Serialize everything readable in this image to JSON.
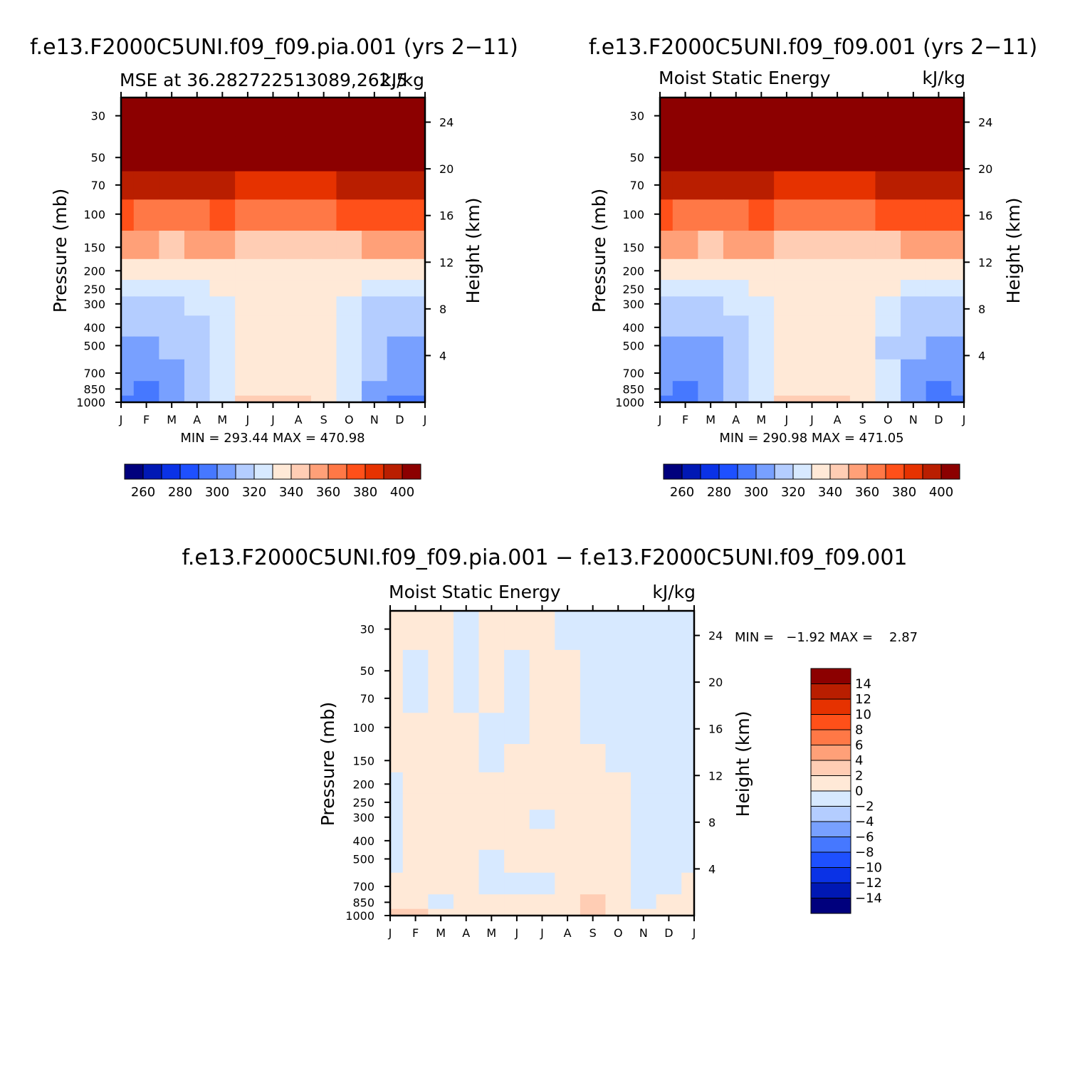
{
  "figure": {
    "panels": [
      {
        "main_title": "f.e13.F2000C5UNI.f09_f09.pia.001 (yrs 2−11)",
        "left_title": "MSE at 36.282722513089,262.5",
        "right_title": "kJ/kg",
        "min_max": "MIN = 293.44 MAX = 470.98"
      },
      {
        "main_title": "f.e13.F2000C5UNI.f09_f09.001 (yrs 2−11)",
        "left_title": "Moist Static Energy",
        "right_title": "kJ/kg",
        "min_max": "MIN = 290.98 MAX = 471.05"
      },
      {
        "main_title": "f.e13.F2000C5UNI.f09_f09.pia.001 − f.e13.F2000C5UNI.f09_f09.001",
        "left_title": "Moist Static Energy",
        "right_title": "kJ/kg",
        "min_max": "MIN =   −1.92 MAX =    2.87"
      }
    ],
    "ylabel_left": "Pressure (mb)",
    "ylabel_right": "Height (km)",
    "pressure_ticks": [
      "30",
      "50",
      "70",
      "100",
      "150",
      "200",
      "250",
      "300",
      "400",
      "500",
      "700",
      "850",
      "1000"
    ],
    "height_ticks": [
      "24",
      "20",
      "16",
      "12",
      "8",
      "4"
    ],
    "month_ticks": [
      "J",
      "F",
      "M",
      "A",
      "M",
      "J",
      "J",
      "A",
      "S",
      "O",
      "N",
      "D",
      "J"
    ],
    "colorbar_labels": [
      "260",
      "280",
      "300",
      "320",
      "340",
      "360",
      "380",
      "400"
    ],
    "colorbar_colors": [
      "#00007d",
      "#0018b4",
      "#0a32e6",
      "#1e50ff",
      "#4678ff",
      "#78a0ff",
      "#b4cdff",
      "#d7e9ff",
      "#ffe9d7",
      "#ffcdb4",
      "#ffa078",
      "#ff7846",
      "#ff5019",
      "#e63200",
      "#b91e00",
      "#8c0000"
    ],
    "diff_colorbar_labels": [
      "14",
      "12",
      "10",
      "8",
      "6",
      "4",
      "2",
      "0",
      "−2",
      "−4",
      "−6",
      "−8",
      "−10",
      "−12",
      "−14"
    ]
  },
  "chart_data": [
    {
      "type": "heatmap",
      "title": "MSE at 36.282722513089,262.5",
      "units": "kJ/kg",
      "xlabel": "",
      "ylabel": "Pressure (mb)",
      "y2label": "Height (km)",
      "x": [
        "J",
        "F",
        "M",
        "A",
        "M",
        "J",
        "J",
        "A",
        "S",
        "O",
        "N",
        "D",
        "J"
      ],
      "y_levels_mb": [
        30,
        50,
        70,
        100,
        150,
        200,
        250,
        300,
        400,
        500,
        700,
        850,
        1000
      ],
      "values": [
        [
          410,
          410,
          410,
          410,
          410,
          410,
          410,
          410,
          410,
          410,
          410,
          410,
          410
        ],
        [
          410,
          410,
          410,
          410,
          410,
          410,
          410,
          410,
          410,
          410,
          410,
          410,
          410
        ],
        [
          395,
          392,
          391,
          391,
          390,
          388,
          386,
          386,
          388,
          390,
          392,
          395,
          395
        ],
        [
          372,
          369,
          368,
          368,
          370,
          368,
          366,
          366,
          368,
          370,
          371,
          372,
          372
        ],
        [
          352,
          350,
          348,
          350,
          352,
          346,
          344,
          344,
          346,
          349,
          350,
          353,
          352
        ],
        [
          335,
          333,
          330,
          332,
          336,
          338,
          338,
          338,
          337,
          335,
          334,
          335,
          335
        ],
        [
          325,
          325,
          325,
          325,
          330,
          333,
          335,
          335,
          334,
          331,
          327,
          325,
          325
        ],
        [
          316,
          315,
          317,
          320,
          325,
          334,
          335,
          335,
          334,
          325,
          318,
          316,
          316
        ],
        [
          312,
          311,
          312,
          317,
          324,
          333,
          335,
          335,
          333,
          322,
          315,
          312,
          312
        ],
        [
          309,
          308,
          310,
          314,
          322,
          331,
          335,
          335,
          331,
          320,
          312,
          309,
          309
        ],
        [
          304,
          303,
          305,
          312,
          322,
          334,
          336,
          336,
          333,
          322,
          310,
          305,
          304
        ],
        [
          300,
          299,
          302,
          312,
          323,
          337,
          338,
          338,
          336,
          323,
          308,
          301,
          300
        ],
        [
          297,
          298,
          301,
          313,
          325,
          340,
          340,
          340,
          338,
          325,
          307,
          297,
          297
        ]
      ],
      "colorbar_ticks": [
        260,
        280,
        300,
        320,
        340,
        360,
        380,
        400
      ],
      "min": 293.44,
      "max": 470.98
    },
    {
      "type": "heatmap",
      "title": "Moist Static Energy",
      "units": "kJ/kg",
      "xlabel": "",
      "ylabel": "Pressure (mb)",
      "y2label": "Height (km)",
      "x": [
        "J",
        "F",
        "M",
        "A",
        "M",
        "J",
        "J",
        "A",
        "S",
        "O",
        "N",
        "D",
        "J"
      ],
      "y_levels_mb": [
        30,
        50,
        70,
        100,
        150,
        200,
        250,
        300,
        400,
        500,
        700,
        850,
        1000
      ],
      "values": [
        [
          410,
          410,
          410,
          410,
          410,
          410,
          410,
          410,
          410,
          410,
          410,
          410,
          410
        ],
        [
          410,
          410,
          410,
          410,
          410,
          410,
          410,
          410,
          410,
          410,
          410,
          410,
          410
        ],
        [
          395,
          392,
          391,
          391,
          390,
          388,
          386,
          386,
          388,
          390,
          392,
          395,
          395
        ],
        [
          372,
          369,
          368,
          368,
          370,
          368,
          366,
          366,
          368,
          370,
          371,
          372,
          372
        ],
        [
          352,
          350,
          348,
          350,
          352,
          346,
          344,
          344,
          346,
          349,
          350,
          353,
          352
        ],
        [
          335,
          333,
          330,
          332,
          336,
          338,
          338,
          338,
          337,
          335,
          334,
          335,
          335
        ],
        [
          325,
          325,
          325,
          325,
          330,
          333,
          335,
          335,
          334,
          331,
          327,
          325,
          325
        ],
        [
          316,
          315,
          317,
          320,
          325,
          334,
          335,
          335,
          334,
          325,
          318,
          316,
          316
        ],
        [
          312,
          311,
          312,
          316,
          323,
          333,
          335,
          335,
          333,
          321,
          314,
          312,
          312
        ],
        [
          309,
          308,
          309,
          313,
          321,
          331,
          335,
          335,
          331,
          318,
          311,
          309,
          309
        ],
        [
          304,
          303,
          304,
          310,
          321,
          334,
          336,
          336,
          333,
          320,
          309,
          304,
          304
        ],
        [
          300,
          298,
          301,
          311,
          322,
          337,
          338,
          338,
          336,
          321,
          306,
          299,
          300
        ],
        [
          296,
          297,
          300,
          312,
          324,
          340,
          340,
          340,
          338,
          323,
          305,
          296,
          296
        ]
      ],
      "colorbar_ticks": [
        260,
        280,
        300,
        320,
        340,
        360,
        380,
        400
      ],
      "min": 290.98,
      "max": 471.05
    },
    {
      "type": "heatmap",
      "title": "Moist Static Energy",
      "units": "kJ/kg",
      "xlabel": "",
      "ylabel": "Pressure (mb)",
      "y2label": "Height (km)",
      "x": [
        "J",
        "F",
        "M",
        "A",
        "M",
        "J",
        "J",
        "A",
        "S",
        "O",
        "N",
        "D",
        "J"
      ],
      "y_levels_mb": [
        30,
        50,
        70,
        100,
        150,
        200,
        250,
        300,
        400,
        500,
        700,
        850,
        1000
      ],
      "values": [
        [
          0.5,
          0.6,
          0.4,
          -0.5,
          0.4,
          0.5,
          0.5,
          -0.5,
          -0.5,
          -0.5,
          -0.5,
          -0.5,
          -0.5
        ],
        [
          0.5,
          -0.3,
          0.5,
          -0.5,
          0.4,
          -0.5,
          0.5,
          0.5,
          -0.5,
          -0.5,
          -0.5,
          -0.5,
          -0.5
        ],
        [
          0.5,
          -0.3,
          0.5,
          -0.5,
          0.5,
          -0.5,
          0.5,
          0.5,
          -0.5,
          -0.5,
          -0.5,
          -0.5,
          -0.5
        ],
        [
          0.5,
          0.5,
          0.5,
          0.6,
          -0.5,
          -0.5,
          0.5,
          0.5,
          -0.5,
          -0.5,
          -0.5,
          -0.5,
          -0.5
        ],
        [
          0.5,
          0.5,
          0.5,
          0.5,
          -0.5,
          0.5,
          0.5,
          0.5,
          0.5,
          -0.5,
          -0.5,
          -0.5,
          -0.5
        ],
        [
          -0.5,
          0.5,
          0.5,
          0.5,
          0.5,
          0.5,
          0.5,
          0.5,
          0.5,
          0.5,
          -0.5,
          -0.5,
          -0.5
        ],
        [
          -0.5,
          0.5,
          0.5,
          0.5,
          0.5,
          0.5,
          0.5,
          0.5,
          0.5,
          0.5,
          -0.5,
          -0.5,
          -0.5
        ],
        [
          -0.5,
          0.5,
          0.5,
          0.5,
          0.5,
          0.5,
          -0.3,
          0.5,
          0.5,
          0.5,
          -0.5,
          -0.5,
          -0.5
        ],
        [
          -0.5,
          0.5,
          0.5,
          0.5,
          0.5,
          0.5,
          0.5,
          0.5,
          0.5,
          0.5,
          -0.5,
          -0.5,
          -0.5
        ],
        [
          -0.5,
          0.5,
          0.5,
          0.5,
          -0.5,
          0.5,
          0.5,
          0.5,
          0.5,
          0.5,
          -0.5,
          -0.5,
          -0.5
        ],
        [
          0.5,
          0.5,
          0.5,
          0.5,
          -0.5,
          -0.5,
          -0.5,
          0.5,
          0.5,
          0.5,
          -0.5,
          -0.5,
          0.5
        ],
        [
          0.5,
          0.5,
          -0.5,
          0.5,
          0.5,
          0.5,
          0.5,
          0.5,
          2.2,
          0.5,
          -0.5,
          0.5,
          0.5
        ],
        [
          2.1,
          2.3,
          0.5,
          0.5,
          0.5,
          0.5,
          0.5,
          0.5,
          2.8,
          0.5,
          0.5,
          0.5,
          0.5
        ]
      ],
      "colorbar_ticks": [
        -14,
        -12,
        -10,
        -8,
        -6,
        -4,
        -2,
        0,
        2,
        4,
        6,
        8,
        10,
        12,
        14
      ],
      "min": -1.92,
      "max": 2.87
    }
  ]
}
